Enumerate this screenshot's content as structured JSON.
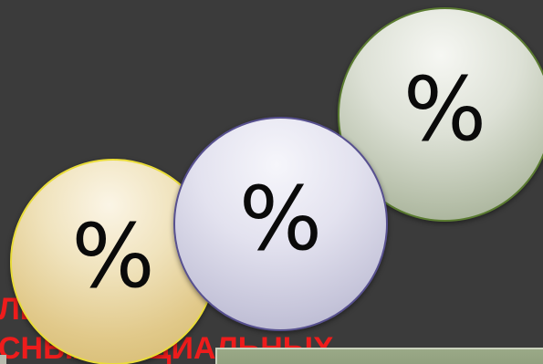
{
  "background_color": "#3b3b3b",
  "accent_red": "#ee1c1c",
  "red_text": {
    "line1": "ЛЬ",
    "line2": "СНЫХ СОЦИАЛЬНЫХ"
  },
  "circles": [
    {
      "symbol": "%",
      "color": "gold"
    },
    {
      "symbol": "%",
      "color": "lavender"
    },
    {
      "symbol": "%",
      "color": "green"
    }
  ]
}
